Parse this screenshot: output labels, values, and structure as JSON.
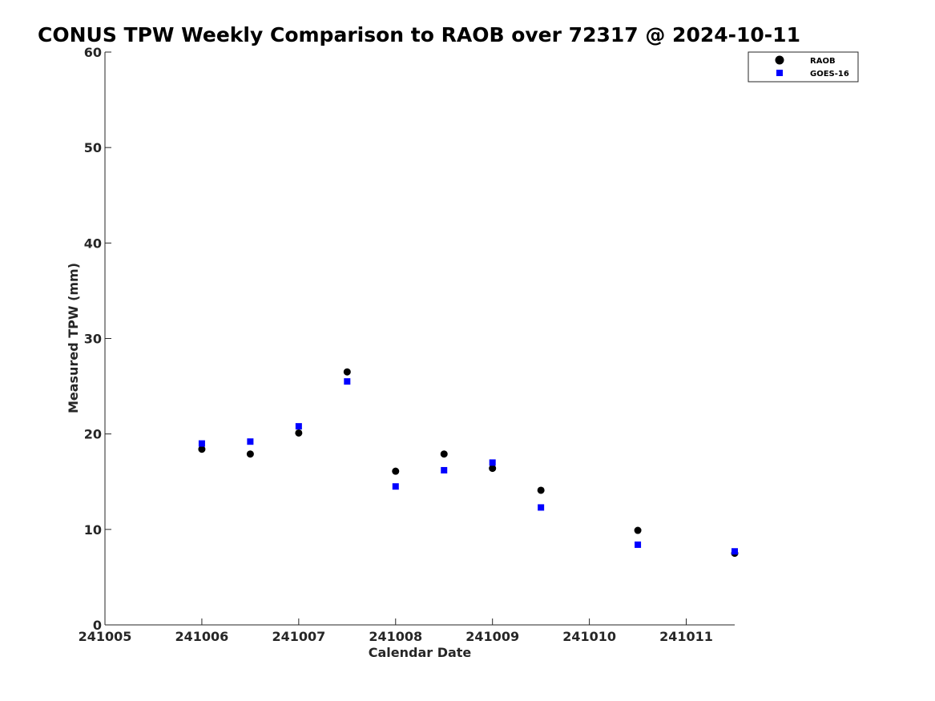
{
  "chart_data": {
    "type": "scatter",
    "title": "CONUS TPW Weekly Comparison to RAOB over 72317 @ 2024-10-11",
    "xlabel": "Calendar Date",
    "ylabel": "Measured TPW (mm)",
    "xlim": [
      241005,
      241011.5
    ],
    "ylim": [
      0,
      60
    ],
    "x_ticks": [
      241005,
      241006,
      241007,
      241008,
      241009,
      241010,
      241011
    ],
    "x_tick_labels": [
      "241005",
      "241006",
      "241007",
      "241008",
      "241009",
      "241010",
      "241011"
    ],
    "y_ticks": [
      0,
      10,
      20,
      30,
      40,
      50,
      60
    ],
    "y_tick_labels": [
      "0",
      "10",
      "20",
      "30",
      "40",
      "50",
      "60"
    ],
    "grid": false,
    "legend_position": "top-right",
    "series": [
      {
        "name": "RAOB",
        "marker": "circle",
        "color": "#000000",
        "x": [
          241006,
          241006.5,
          241007,
          241007.5,
          241008,
          241008.5,
          241009,
          241009.5,
          241010.5,
          241011.5
        ],
        "y": [
          18.4,
          17.9,
          20.1,
          26.5,
          16.1,
          17.9,
          16.4,
          14.1,
          9.9,
          7.5
        ]
      },
      {
        "name": "GOES-16",
        "marker": "square",
        "color": "#0000ff",
        "x": [
          241006,
          241006.5,
          241007,
          241007.5,
          241008,
          241008.5,
          241009,
          241009.5,
          241010.5,
          241011.5
        ],
        "y": [
          19.0,
          19.2,
          20.8,
          25.5,
          14.5,
          16.2,
          17.0,
          12.3,
          8.4,
          7.7
        ]
      }
    ]
  }
}
